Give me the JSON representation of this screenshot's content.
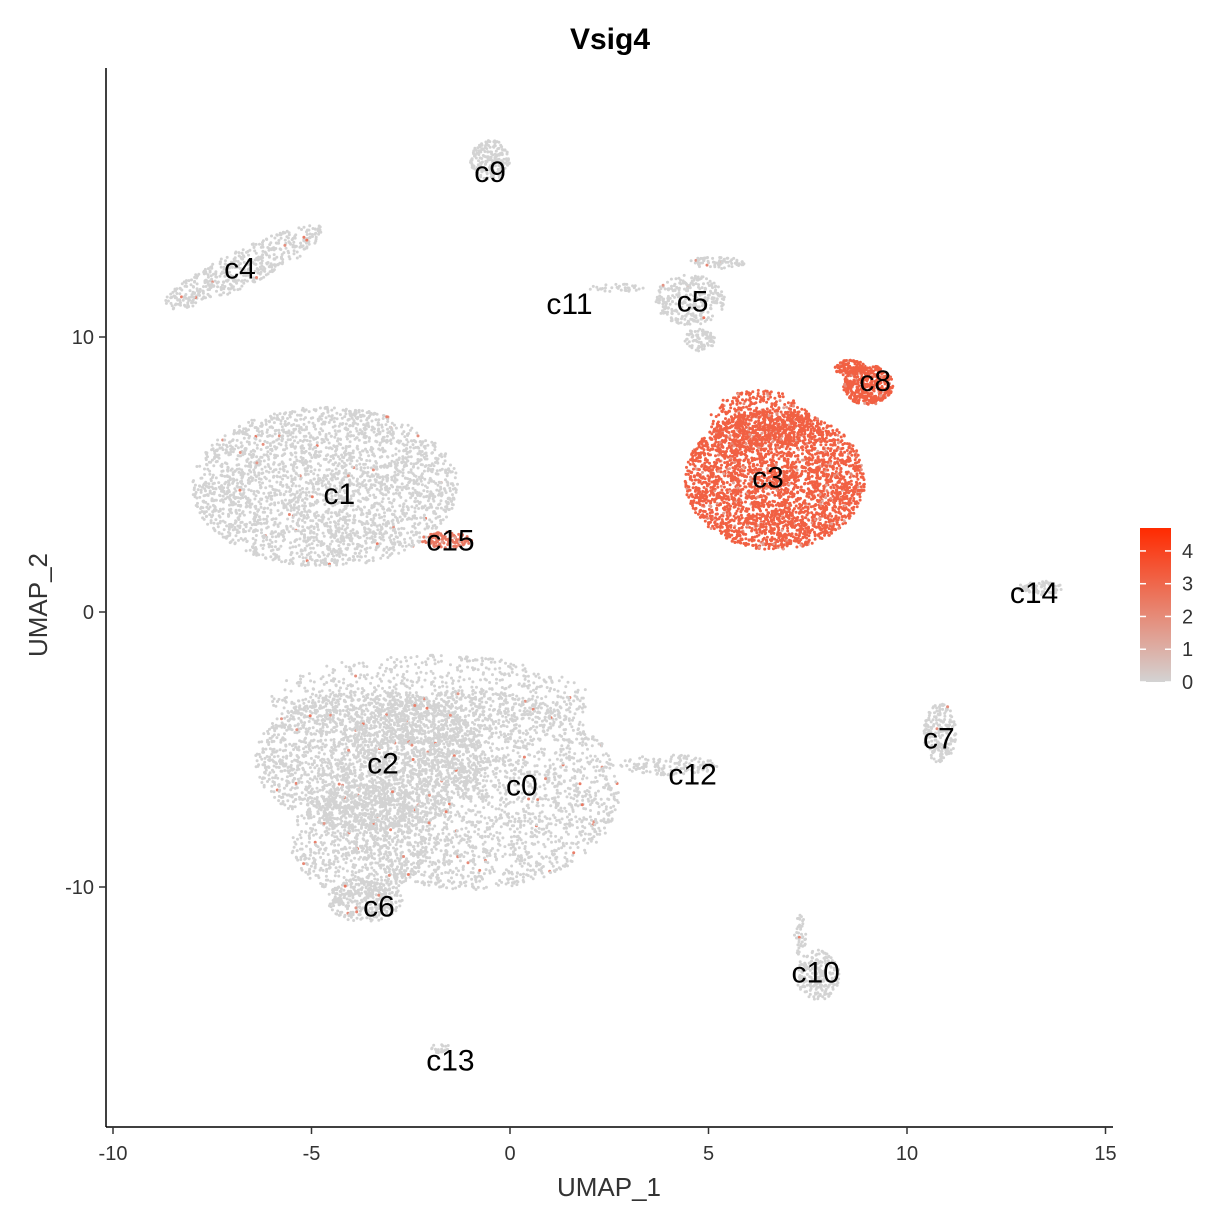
{
  "chart_data": {
    "type": "scatter",
    "title": "Vsig4",
    "xlabel": "UMAP_1",
    "ylabel": "UMAP_2",
    "xlim": [
      -10.2,
      15.1
    ],
    "ylim": [
      -18.5,
      20.5
    ],
    "x_ticks": [
      -10,
      -5,
      0,
      5,
      10,
      15
    ],
    "x_tick_labels": [
      "-10",
      "-5",
      "0",
      "5",
      "10",
      "15"
    ],
    "y_ticks": [
      -10,
      0,
      10
    ],
    "y_tick_labels": [
      "-10",
      "0",
      "10"
    ],
    "grid": false,
    "legend": {
      "position": "right",
      "min": 0,
      "max": 4.7,
      "ticks": [
        0,
        1,
        2,
        3,
        4
      ],
      "tick_labels": [
        "0",
        "1",
        "2",
        "3",
        "4"
      ],
      "color_low": "#d3d3d3",
      "color_high": "#ff2a00"
    },
    "clusters": [
      {
        "label": "c0",
        "x": 0.3,
        "y": -6.3,
        "expression": 0.1
      },
      {
        "label": "c1",
        "x": -4.3,
        "y": 4.3,
        "expression": 0.2
      },
      {
        "label": "c2",
        "x": -3.2,
        "y": -5.5,
        "expression": 0.1
      },
      {
        "label": "c3",
        "x": 6.5,
        "y": 4.9,
        "expression": 3.2
      },
      {
        "label": "c4",
        "x": -6.8,
        "y": 12.5,
        "expression": 0.3
      },
      {
        "label": "c5",
        "x": 4.6,
        "y": 11.3,
        "expression": 0.1
      },
      {
        "label": "c6",
        "x": -3.3,
        "y": -10.7,
        "expression": 0.05
      },
      {
        "label": "c7",
        "x": 10.8,
        "y": -4.6,
        "expression": 0.1
      },
      {
        "label": "c8",
        "x": 9.2,
        "y": 8.4,
        "expression": 3.2
      },
      {
        "label": "c9",
        "x": -0.5,
        "y": 16.0,
        "expression": 0.05
      },
      {
        "label": "c10",
        "x": 7.7,
        "y": -13.1,
        "expression": 0.05
      },
      {
        "label": "c11",
        "x": 1.5,
        "y": 11.2,
        "expression": 0.05
      },
      {
        "label": "c12",
        "x": 4.6,
        "y": -5.9,
        "expression": 0.05
      },
      {
        "label": "c13",
        "x": -1.5,
        "y": -16.3,
        "expression": 0.0
      },
      {
        "label": "c14",
        "x": 13.2,
        "y": 0.7,
        "expression": 0.1
      },
      {
        "label": "c15",
        "x": -1.5,
        "y": 2.6,
        "expression": 2.5
      }
    ]
  }
}
